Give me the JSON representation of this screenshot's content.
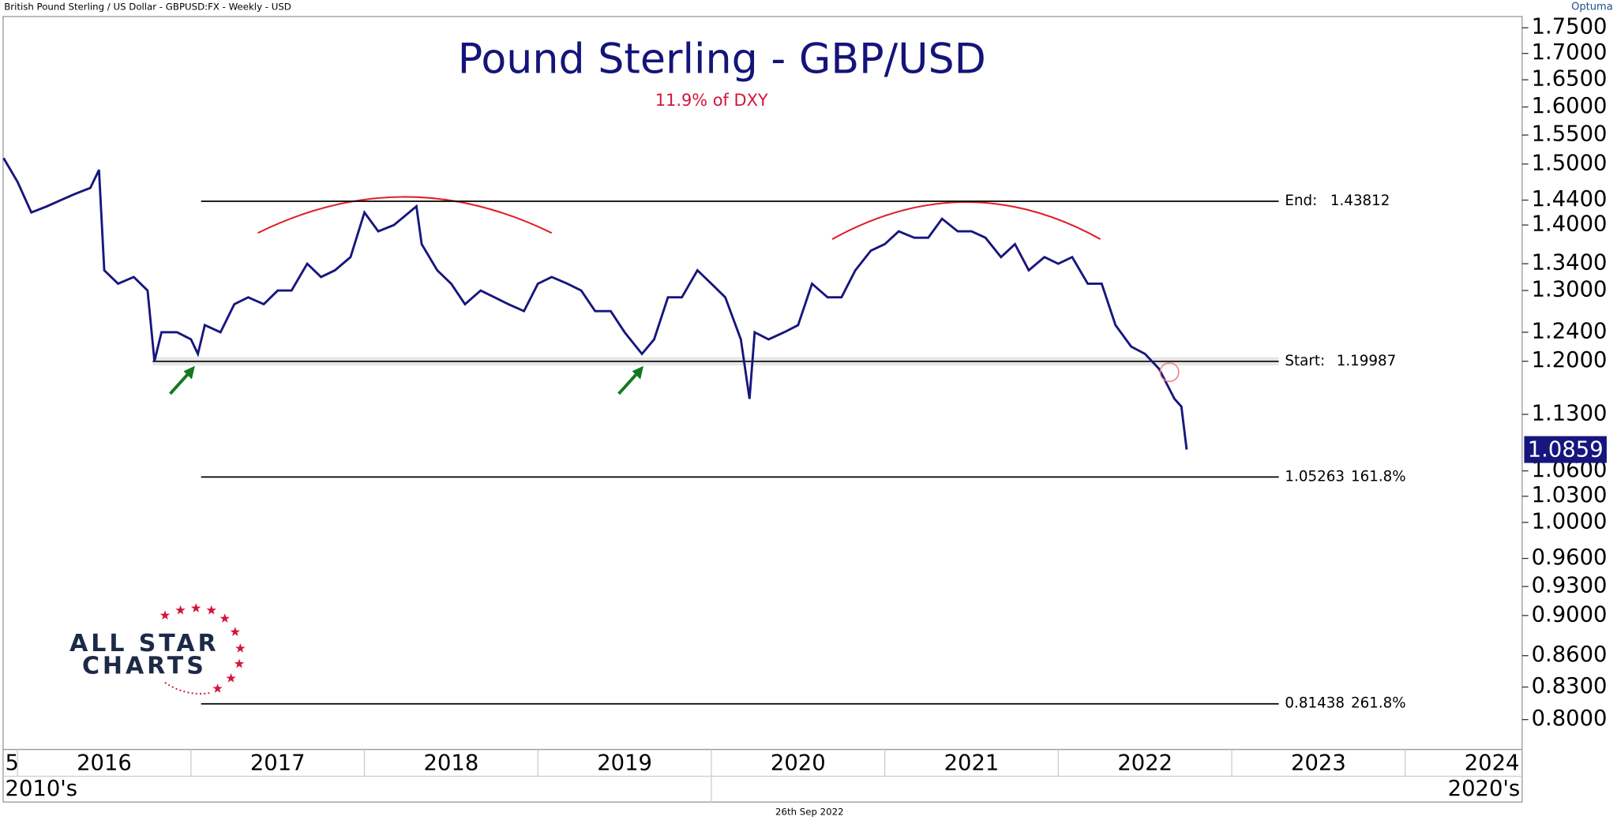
{
  "chart_data": {
    "type": "line",
    "header": "British Pound Sterling / US Dollar - GBPUSD:FX - Weekly - USD",
    "brand": "Optuma",
    "title": "Pound Sterling - GBP/USD",
    "subtitle": "11.9% of DXY",
    "footer": "26th Sep 2022",
    "logo": [
      "ALL STAR",
      "CHARTS"
    ],
    "color": "#16167e",
    "log_scale": true,
    "grid": false,
    "xlim": [
      2015.917,
      2024.674
    ],
    "xticks": [
      {
        "value": 2015,
        "label": "5"
      },
      2016,
      2017,
      2018,
      2019,
      2020,
      2021,
      2022,
      2023,
      2024
    ],
    "decades": [
      {
        "value": 2010,
        "label": "2010's"
      },
      {
        "value": 2020,
        "label": "2020's"
      }
    ],
    "ylim": [
      0.7734,
      1.7725
    ],
    "yticks": [
      {
        "value": 1.75,
        "label": "1.7500"
      },
      {
        "value": 1.7,
        "label": "1.7000"
      },
      {
        "value": 1.65,
        "label": "1.6500"
      },
      {
        "value": 1.6,
        "label": "1.6000"
      },
      {
        "value": 1.55,
        "label": "1.5500"
      },
      {
        "value": 1.5,
        "label": "1.5000"
      },
      {
        "value": 1.44,
        "label": "1.4400"
      },
      {
        "value": 1.4,
        "label": "1.4000"
      },
      {
        "value": 1.34,
        "label": "1.3400"
      },
      {
        "value": 1.3,
        "label": "1.3000"
      },
      {
        "value": 1.24,
        "label": "1.2400"
      },
      {
        "value": 1.2,
        "label": "1.2000"
      },
      {
        "value": 1.13,
        "label": "1.1300"
      },
      {
        "value": 1.06,
        "label": "1.0600"
      },
      {
        "value": 1.03,
        "label": "1.0300"
      },
      {
        "value": 1.0,
        "label": "1.0000"
      },
      {
        "value": 0.96,
        "label": "0.9600"
      },
      {
        "value": 0.93,
        "label": "0.9300"
      },
      {
        "value": 0.9,
        "label": "0.9000"
      },
      {
        "value": 0.86,
        "label": "0.8600"
      },
      {
        "value": 0.83,
        "label": "0.8300"
      },
      {
        "value": 0.8,
        "label": "0.8000"
      }
    ],
    "levels": [
      {
        "label": "End:",
        "value": 1.43812
      },
      {
        "label": "Start:",
        "value": 1.19987
      },
      {
        "value": 1.05263,
        "label": "161.8%"
      },
      {
        "value": 0.81438,
        "label": "261.8%"
      }
    ],
    "x": [
      2015.92,
      2016.0,
      2016.08,
      2016.17,
      2016.25,
      2016.33,
      2016.42,
      2016.47,
      2016.5,
      2016.58,
      2016.67,
      2016.75,
      2016.79,
      2016.83,
      2016.92,
      2017.0,
      2017.04,
      2017.08,
      2017.17,
      2017.25,
      2017.33,
      2017.42,
      2017.5,
      2017.58,
      2017.67,
      2017.75,
      2017.83,
      2017.92,
      2018.0,
      2018.08,
      2018.17,
      2018.3,
      2018.33,
      2018.42,
      2018.5,
      2018.58,
      2018.67,
      2018.75,
      2018.83,
      2018.92,
      2019.0,
      2019.08,
      2019.17,
      2019.25,
      2019.33,
      2019.42,
      2019.5,
      2019.6,
      2019.67,
      2019.75,
      2019.83,
      2019.92,
      2020.0,
      2020.08,
      2020.17,
      2020.22,
      2020.25,
      2020.33,
      2020.42,
      2020.5,
      2020.58,
      2020.67,
      2020.75,
      2020.83,
      2020.92,
      2021.0,
      2021.08,
      2021.17,
      2021.25,
      2021.33,
      2021.42,
      2021.5,
      2021.58,
      2021.67,
      2021.75,
      2021.83,
      2021.92,
      2022.0,
      2022.08,
      2022.17,
      2022.25,
      2022.33,
      2022.42,
      2022.5,
      2022.58,
      2022.67,
      2022.71,
      2022.74
    ],
    "values": [
      1.51,
      1.47,
      1.42,
      1.43,
      1.44,
      1.45,
      1.46,
      1.49,
      1.33,
      1.31,
      1.32,
      1.3,
      1.2,
      1.24,
      1.24,
      1.23,
      1.21,
      1.25,
      1.24,
      1.28,
      1.29,
      1.28,
      1.3,
      1.3,
      1.34,
      1.32,
      1.33,
      1.35,
      1.42,
      1.39,
      1.4,
      1.43,
      1.37,
      1.33,
      1.31,
      1.28,
      1.3,
      1.29,
      1.28,
      1.27,
      1.31,
      1.32,
      1.31,
      1.3,
      1.27,
      1.27,
      1.24,
      1.21,
      1.23,
      1.29,
      1.29,
      1.33,
      1.31,
      1.29,
      1.23,
      1.15,
      1.24,
      1.23,
      1.24,
      1.25,
      1.31,
      1.29,
      1.29,
      1.33,
      1.36,
      1.37,
      1.39,
      1.38,
      1.38,
      1.41,
      1.39,
      1.39,
      1.38,
      1.35,
      1.37,
      1.33,
      1.35,
      1.34,
      1.35,
      1.31,
      1.31,
      1.25,
      1.22,
      1.21,
      1.19,
      1.15,
      1.14,
      1.0859
    ]
  }
}
